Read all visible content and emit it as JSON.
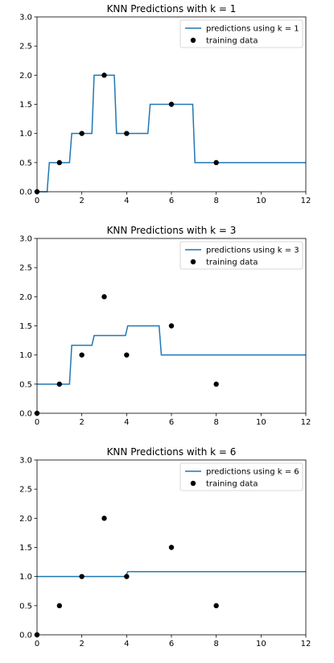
{
  "chart_data": [
    {
      "type": "line",
      "title": "KNN Predictions with k = 1",
      "xlim": [
        0,
        12
      ],
      "ylim": [
        0,
        3.0
      ],
      "x_ticks": [
        "0",
        "2",
        "4",
        "6",
        "8",
        "10",
        "12"
      ],
      "y_ticks": [
        "0.0",
        "0.5",
        "1.0",
        "1.5",
        "2.0",
        "2.5",
        "3.0"
      ],
      "legend_position": "upper right",
      "series": [
        {
          "name": "predictions using k = 1",
          "type": "line",
          "color": "#1f77b4",
          "x": [
            0,
            0.45,
            0.55,
            1.45,
            1.55,
            2.45,
            2.55,
            3.45,
            3.55,
            4.95,
            5.05,
            6.95,
            7.05,
            12
          ],
          "y": [
            0,
            0,
            0.5,
            0.5,
            1.0,
            1.0,
            2.0,
            2.0,
            1.0,
            1.0,
            1.5,
            1.5,
            0.5,
            0.5
          ]
        },
        {
          "name": "training data",
          "type": "scatter",
          "color": "#000000",
          "x": [
            0,
            1,
            2,
            3,
            4,
            6,
            8
          ],
          "y": [
            0,
            0.5,
            1.0,
            2.0,
            1.0,
            1.5,
            0.5
          ]
        }
      ]
    },
    {
      "type": "line",
      "title": "KNN Predictions with k = 3",
      "xlim": [
        0,
        12
      ],
      "ylim": [
        0,
        3.0
      ],
      "x_ticks": [
        "0",
        "2",
        "4",
        "6",
        "8",
        "10",
        "12"
      ],
      "y_ticks": [
        "0.0",
        "0.5",
        "1.0",
        "1.5",
        "2.0",
        "2.5",
        "3.0"
      ],
      "legend_position": "upper right",
      "series": [
        {
          "name": "predictions using k = 3",
          "type": "line",
          "color": "#1f77b4",
          "x": [
            0,
            1.45,
            1.55,
            2.45,
            2.55,
            3.95,
            4.05,
            5.45,
            5.55,
            12
          ],
          "y": [
            0.5,
            0.5,
            1.1667,
            1.1667,
            1.3333,
            1.3333,
            1.5,
            1.5,
            1.0,
            1.0
          ]
        },
        {
          "name": "training data",
          "type": "scatter",
          "color": "#000000",
          "x": [
            0,
            1,
            2,
            3,
            4,
            6,
            8
          ],
          "y": [
            0,
            0.5,
            1.0,
            2.0,
            1.0,
            1.5,
            0.5
          ]
        }
      ]
    },
    {
      "type": "line",
      "title": "KNN Predictions with k = 6",
      "xlim": [
        0,
        12
      ],
      "ylim": [
        0,
        3.0
      ],
      "x_ticks": [
        "0",
        "2",
        "4",
        "6",
        "8",
        "10",
        "12"
      ],
      "y_ticks": [
        "0.0",
        "0.5",
        "1.0",
        "1.5",
        "2.0",
        "2.5",
        "3.0"
      ],
      "legend_position": "upper right",
      "series": [
        {
          "name": "predictions using k = 6",
          "type": "line",
          "color": "#1f77b4",
          "x": [
            0,
            3.95,
            4.05,
            12
          ],
          "y": [
            1.0,
            1.0,
            1.0833,
            1.0833
          ]
        },
        {
          "name": "training data",
          "type": "scatter",
          "color": "#000000",
          "x": [
            0,
            1,
            2,
            3,
            4,
            6,
            8
          ],
          "y": [
            0,
            0.5,
            1.0,
            2.0,
            1.0,
            1.5,
            0.5
          ]
        }
      ]
    }
  ]
}
